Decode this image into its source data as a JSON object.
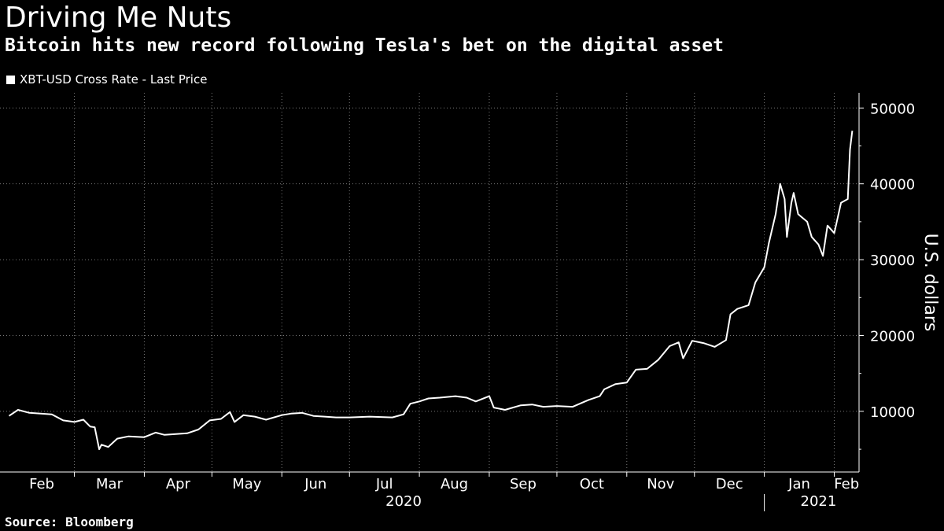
{
  "header": {
    "title": "Driving Me Nuts",
    "subtitle": "Bitcoin hits new record following Tesla's bet on the digital asset"
  },
  "footer": {
    "source": "Source: Bloomberg"
  },
  "colors": {
    "background": "#000000",
    "line": "#ffffff",
    "grid": "#777777",
    "text": "#ffffff"
  },
  "chart_data": {
    "type": "line",
    "title": "Driving Me Nuts",
    "subtitle": "Bitcoin hits new record following Tesla's bet on the digital asset",
    "ylabel": "U.S. dollars",
    "y_axis_side": "right",
    "ylim": [
      2000,
      52000
    ],
    "yticks": [
      10000,
      20000,
      30000,
      40000,
      50000
    ],
    "ytick_labels": [
      "10000",
      "20000",
      "30000",
      "40000",
      "50000"
    ],
    "grid": true,
    "legend": {
      "position": "top-left",
      "entries": [
        "XBT-USD Cross Rate - Last Price"
      ]
    },
    "x_months": [
      "Feb",
      "Mar",
      "Apr",
      "May",
      "Jun",
      "Jul",
      "Aug",
      "Sep",
      "Oct",
      "Nov",
      "Dec",
      "Jan",
      "Feb"
    ],
    "x_years": [
      "2020",
      "2021"
    ],
    "series": [
      {
        "name": "XBT-USD Cross Rate - Last Price",
        "x": [
          "2020-02-01",
          "2020-02-05",
          "2020-02-10",
          "2020-02-15",
          "2020-02-20",
          "2020-02-25",
          "2020-03-01",
          "2020-03-05",
          "2020-03-08",
          "2020-03-10",
          "2020-03-12",
          "2020-03-13",
          "2020-03-16",
          "2020-03-20",
          "2020-03-25",
          "2020-04-01",
          "2020-04-06",
          "2020-04-10",
          "2020-04-15",
          "2020-04-20",
          "2020-04-25",
          "2020-04-30",
          "2020-05-05",
          "2020-05-09",
          "2020-05-11",
          "2020-05-15",
          "2020-05-20",
          "2020-05-25",
          "2020-06-01",
          "2020-06-05",
          "2020-06-10",
          "2020-06-15",
          "2020-06-20",
          "2020-06-25",
          "2020-07-01",
          "2020-07-10",
          "2020-07-20",
          "2020-07-25",
          "2020-07-28",
          "2020-08-01",
          "2020-08-05",
          "2020-08-10",
          "2020-08-17",
          "2020-08-22",
          "2020-08-26",
          "2020-09-01",
          "2020-09-03",
          "2020-09-08",
          "2020-09-15",
          "2020-09-20",
          "2020-09-25",
          "2020-10-01",
          "2020-10-08",
          "2020-10-15",
          "2020-10-20",
          "2020-10-22",
          "2020-10-27",
          "2020-11-01",
          "2020-11-05",
          "2020-11-10",
          "2020-11-15",
          "2020-11-20",
          "2020-11-24",
          "2020-11-26",
          "2020-11-30",
          "2020-12-05",
          "2020-12-10",
          "2020-12-15",
          "2020-12-17",
          "2020-12-20",
          "2020-12-25",
          "2020-12-28",
          "2021-01-01",
          "2021-01-03",
          "2021-01-06",
          "2021-01-08",
          "2021-01-10",
          "2021-01-11",
          "2021-01-13",
          "2021-01-14",
          "2021-01-16",
          "2021-01-20",
          "2021-01-22",
          "2021-01-25",
          "2021-01-27",
          "2021-01-29",
          "2021-02-01",
          "2021-02-04",
          "2021-02-07",
          "2021-02-08",
          "2021-02-09"
        ],
        "values": [
          9400,
          10200,
          9800,
          9700,
          9600,
          8800,
          8600,
          8900,
          8000,
          7900,
          5000,
          5600,
          5300,
          6400,
          6700,
          6600,
          7200,
          6900,
          7000,
          7100,
          7600,
          8800,
          9000,
          9900,
          8600,
          9500,
          9300,
          8900,
          9500,
          9700,
          9800,
          9400,
          9300,
          9200,
          9200,
          9300,
          9200,
          9600,
          11000,
          11300,
          11700,
          11800,
          12000,
          11800,
          11300,
          12000,
          10500,
          10200,
          10800,
          10900,
          10600,
          10700,
          10600,
          11500,
          12000,
          12900,
          13600,
          13800,
          15500,
          15600,
          16800,
          18600,
          19100,
          17000,
          19300,
          19000,
          18500,
          19400,
          22800,
          23500,
          24000,
          27000,
          29000,
          32200,
          36000,
          40000,
          38000,
          33000,
          37500,
          38800,
          36000,
          35000,
          33000,
          32000,
          30500,
          34500,
          33500,
          37500,
          38000,
          44500,
          47000
        ]
      }
    ]
  }
}
